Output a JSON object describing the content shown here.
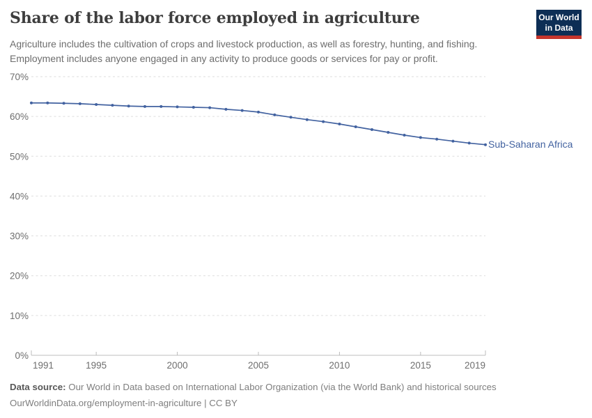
{
  "header": {
    "title": "Share of the labor force employed in agriculture",
    "subtitle_lines": [
      "Agriculture includes the cultivation of crops and livestock production, as well as forestry, hunting, and fishing.",
      "Employment includes anyone engaged in any activity to produce goods or services for pay or profit."
    ],
    "logo": {
      "line1": "Our World",
      "line2": "in Data",
      "bg_color": "#0d2e55",
      "accent_color": "#c5352c"
    }
  },
  "chart_data": {
    "type": "line",
    "title": "Share of the labor force employed in agriculture",
    "grid": "horizontal-dashed",
    "legend_position": "end-of-line-label",
    "ylim": [
      0,
      70
    ],
    "xlim": [
      1991,
      2019
    ],
    "x": [
      1991,
      1992,
      1993,
      1994,
      1995,
      1996,
      1997,
      1998,
      1999,
      2000,
      2001,
      2002,
      2003,
      2004,
      2005,
      2006,
      2007,
      2008,
      2009,
      2010,
      2011,
      2012,
      2013,
      2014,
      2015,
      2016,
      2017,
      2018,
      2019
    ],
    "series": [
      {
        "name": "Sub-Saharan Africa",
        "color": "#4262a0",
        "values": [
          63.4,
          63.4,
          63.3,
          63.2,
          63.0,
          62.8,
          62.6,
          62.5,
          62.5,
          62.4,
          62.3,
          62.2,
          61.8,
          61.5,
          61.1,
          60.4,
          59.8,
          59.2,
          58.7,
          58.1,
          57.4,
          56.7,
          56.0,
          55.3,
          54.7,
          54.3,
          53.8,
          53.3,
          52.9
        ]
      }
    ],
    "yticks": [
      {
        "value": 0,
        "label": "0%"
      },
      {
        "value": 10,
        "label": "10%"
      },
      {
        "value": 20,
        "label": "20%"
      },
      {
        "value": 30,
        "label": "30%"
      },
      {
        "value": 40,
        "label": "40%"
      },
      {
        "value": 50,
        "label": "50%"
      },
      {
        "value": 60,
        "label": "60%"
      },
      {
        "value": 70,
        "label": "70%"
      }
    ],
    "xticks": [
      {
        "value": 1991,
        "label": "1991"
      },
      {
        "value": 1995,
        "label": "1995"
      },
      {
        "value": 2000,
        "label": "2000"
      },
      {
        "value": 2005,
        "label": "2005"
      },
      {
        "value": 2010,
        "label": "2010"
      },
      {
        "value": 2015,
        "label": "2015"
      },
      {
        "value": 2019,
        "label": "2019"
      }
    ]
  },
  "footer": {
    "datasource_label": "Data source:",
    "datasource_text": "Our World in Data based on International Labor Organization (via the World Bank) and historical sources",
    "link_line": "OurWorldinData.org/employment-in-agriculture | CC BY"
  }
}
